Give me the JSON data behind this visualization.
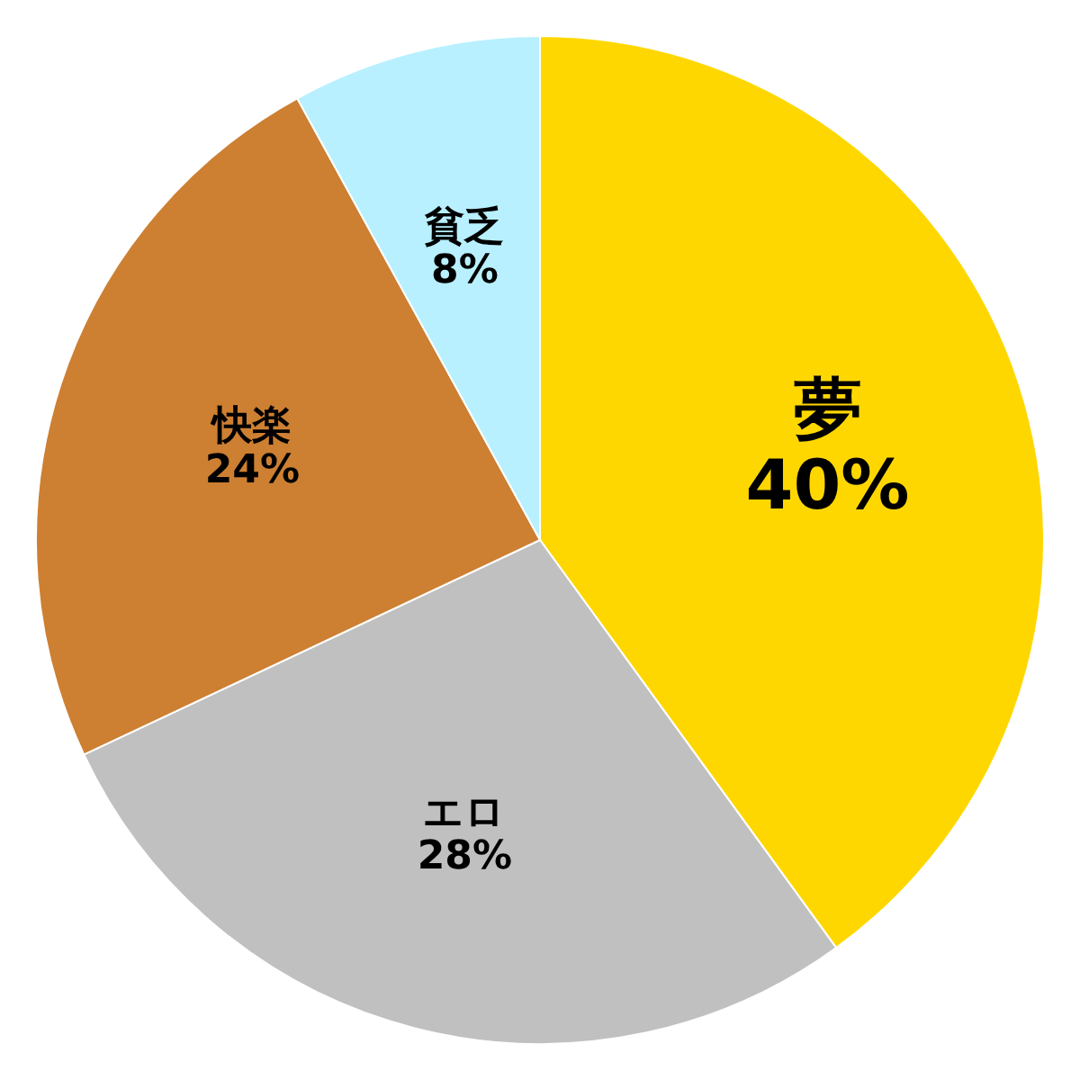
{
  "chart_data": {
    "type": "pie",
    "categories": [
      "夢",
      "エロ",
      "快楽",
      "貧乏"
    ],
    "values": [
      40,
      28,
      24,
      8
    ],
    "colors": [
      "#ffd700",
      "#c0c0c0",
      "#cd7f32",
      "#b8f0ff"
    ],
    "value_labels": [
      "40%",
      "28%",
      "24%",
      "8%"
    ]
  }
}
